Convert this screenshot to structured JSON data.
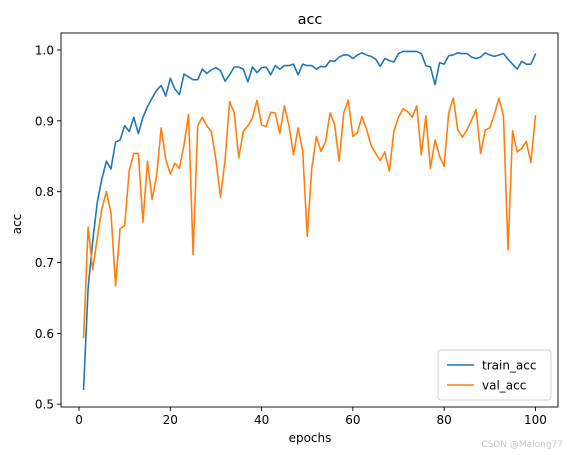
{
  "chart_data": {
    "type": "line",
    "title": "acc",
    "xlabel": "epochs",
    "ylabel": "acc",
    "xlim": [
      -3.95,
      104.95
    ],
    "ylim": [
      0.496,
      1.024
    ],
    "xticks": [
      0,
      20,
      40,
      60,
      80,
      100
    ],
    "yticks": [
      0.5,
      0.6,
      0.7,
      0.8,
      0.9,
      1.0
    ],
    "ytick_labels": [
      "0.5",
      "0.6",
      "0.7",
      "0.8",
      "0.9",
      "1.0"
    ],
    "grid": false,
    "legend": "lower-right",
    "x": [
      1,
      2,
      3,
      4,
      5,
      6,
      7,
      8,
      9,
      10,
      11,
      12,
      13,
      14,
      15,
      16,
      17,
      18,
      19,
      20,
      21,
      22,
      23,
      24,
      25,
      26,
      27,
      28,
      29,
      30,
      31,
      32,
      33,
      34,
      35,
      36,
      37,
      38,
      39,
      40,
      41,
      42,
      43,
      44,
      45,
      46,
      47,
      48,
      49,
      50,
      51,
      52,
      53,
      54,
      55,
      56,
      57,
      58,
      59,
      60,
      61,
      62,
      63,
      64,
      65,
      66,
      67,
      68,
      69,
      70,
      71,
      72,
      73,
      74,
      75,
      76,
      77,
      78,
      79,
      80,
      81,
      82,
      83,
      84,
      85,
      86,
      87,
      88,
      89,
      90,
      91,
      92,
      93,
      94,
      95,
      96,
      97,
      98,
      99,
      100
    ],
    "series": [
      {
        "name": "train_acc",
        "color": "#1f77b4",
        "values": [
          0.521,
          0.665,
          0.73,
          0.785,
          0.818,
          0.843,
          0.832,
          0.87,
          0.873,
          0.893,
          0.885,
          0.905,
          0.882,
          0.905,
          0.92,
          0.932,
          0.943,
          0.95,
          0.935,
          0.96,
          0.945,
          0.937,
          0.966,
          0.962,
          0.958,
          0.958,
          0.973,
          0.967,
          0.972,
          0.975,
          0.971,
          0.956,
          0.965,
          0.976,
          0.976,
          0.973,
          0.955,
          0.976,
          0.968,
          0.975,
          0.976,
          0.965,
          0.978,
          0.973,
          0.978,
          0.978,
          0.98,
          0.965,
          0.98,
          0.978,
          0.978,
          0.973,
          0.977,
          0.976,
          0.985,
          0.984,
          0.99,
          0.993,
          0.993,
          0.988,
          0.993,
          0.996,
          0.993,
          0.991,
          0.987,
          0.977,
          0.988,
          0.985,
          0.983,
          0.995,
          0.998,
          0.998,
          0.998,
          0.998,
          0.995,
          0.978,
          0.976,
          0.951,
          0.982,
          0.98,
          0.992,
          0.993,
          0.996,
          0.995,
          0.995,
          0.99,
          0.988,
          0.99,
          0.996,
          0.993,
          0.991,
          0.993,
          0.995,
          0.987,
          0.98,
          0.973,
          0.984,
          0.98,
          0.98,
          0.994
        ]
      },
      {
        "name": "val_acc",
        "color": "#ff7f0e",
        "values": [
          0.594,
          0.75,
          0.69,
          0.735,
          0.776,
          0.8,
          0.77,
          0.667,
          0.748,
          0.752,
          0.83,
          0.854,
          0.854,
          0.757,
          0.843,
          0.789,
          0.822,
          0.89,
          0.846,
          0.825,
          0.84,
          0.833,
          0.866,
          0.909,
          0.711,
          0.893,
          0.905,
          0.893,
          0.885,
          0.845,
          0.792,
          0.845,
          0.927,
          0.912,
          0.848,
          0.885,
          0.893,
          0.904,
          0.929,
          0.894,
          0.892,
          0.912,
          0.911,
          0.882,
          0.921,
          0.893,
          0.852,
          0.89,
          0.858,
          0.737,
          0.833,
          0.878,
          0.857,
          0.87,
          0.911,
          0.895,
          0.843,
          0.911,
          0.929,
          0.878,
          0.883,
          0.906,
          0.888,
          0.865,
          0.854,
          0.844,
          0.856,
          0.829,
          0.886,
          0.905,
          0.917,
          0.913,
          0.905,
          0.921,
          0.852,
          0.907,
          0.833,
          0.873,
          0.85,
          0.836,
          0.911,
          0.932,
          0.887,
          0.877,
          0.887,
          0.901,
          0.916,
          0.854,
          0.887,
          0.89,
          0.909,
          0.932,
          0.907,
          0.718,
          0.886,
          0.856,
          0.861,
          0.871,
          0.841,
          0.907
        ]
      }
    ]
  },
  "watermark": "CSDN @Malong77"
}
